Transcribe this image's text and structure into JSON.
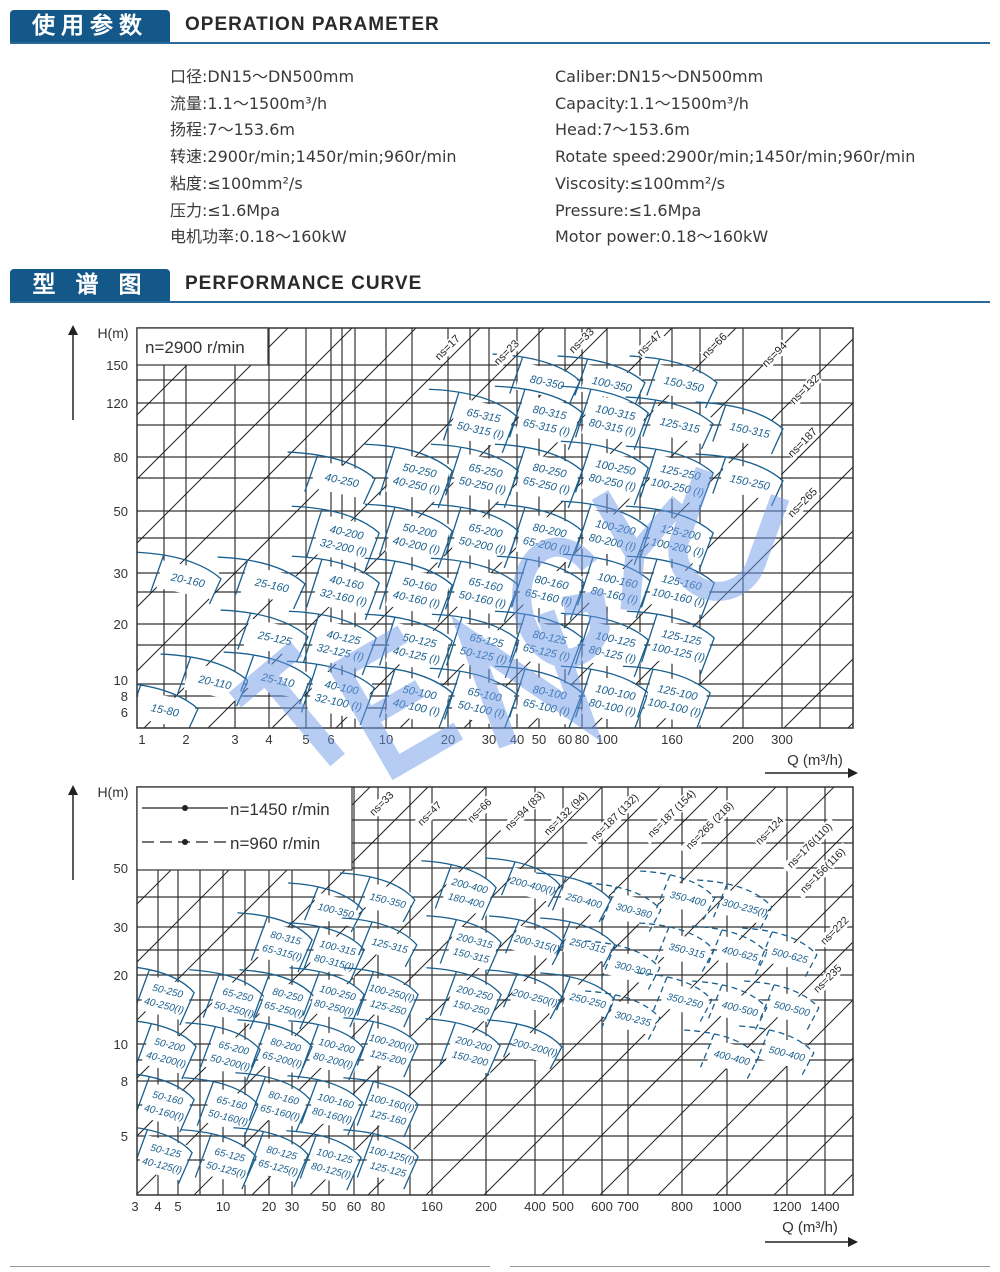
{
  "section1": {
    "title_cn": "使用参数",
    "title_en": "OPERATION PARAMETER"
  },
  "params_cn": [
    "口径:DN15～DN500mm",
    "流量:1.1～1500m³/h",
    "扬程:7～153.6m",
    "转速:2900r/min;1450r/min;960r/min",
    "粘度:≤100mm²/s",
    "压力:≤1.6Mpa",
    "电机功率:0.18～160kW"
  ],
  "params_en": [
    "Caliber:DN15～DN500mm",
    "Capacity:1.1～1500m³/h",
    "Head:7～153.6m",
    "Rotate speed:2900r/min;1450r/min;960r/min",
    "Viscosity:≤100mm²/s",
    "Pressure:≤1.6Mpa",
    "Motor power:0.18～160kW"
  ],
  "section2": {
    "title_cn": "型 谱 图",
    "title_en": "PERFORMANCE CURVE"
  },
  "watermark": "TENGYU",
  "colors": {
    "brand_blue": "#14588a",
    "curve_blue": "#1a5f8e",
    "grid": "#333333",
    "watermark": "#6f9ae8"
  },
  "chart1": {
    "ylabel": "H(m)",
    "xlabel": "Q (m³/h)",
    "legend": "n=2900 r/min",
    "y_ticks": [
      "150",
      "120",
      "80",
      "50",
      "30",
      "20",
      "10",
      "8",
      "6"
    ],
    "x_ticks": [
      "1",
      "2",
      "3",
      "4",
      "5",
      "6",
      "10",
      "20",
      "30",
      "40",
      "50",
      "60",
      "80",
      "100",
      "160",
      "200",
      "300"
    ],
    "ns_labels": [
      "ns=17",
      "ns=23",
      "ns=33",
      "ns=47",
      "ns=66",
      "ns=94",
      "ns=132",
      "ns=187",
      "ns=265"
    ],
    "models": [
      [
        "15-80"
      ],
      [
        "20-110"
      ],
      [
        "25-110"
      ],
      [
        "20-160"
      ],
      [
        "25-160"
      ],
      [
        "25-125"
      ],
      [
        "40-100",
        "32-100 (I)"
      ],
      [
        "40-125",
        "32-125 (I)"
      ],
      [
        "40-160",
        "32-160 (I)"
      ],
      [
        "40-200",
        "32-200 (I)"
      ],
      [
        "40-250"
      ],
      [
        "50-100",
        "40-100 (I)"
      ],
      [
        "50-125",
        "40-125 (I)"
      ],
      [
        "50-160",
        "40-160 (I)"
      ],
      [
        "50-200",
        "40-200 (I)"
      ],
      [
        "50-250",
        "40-250 (I)"
      ],
      [
        "65-315",
        "50-315 (I)"
      ],
      [
        "65-250",
        "50-250 (I)"
      ],
      [
        "65-200",
        "50-200 (I)"
      ],
      [
        "65-160",
        "50-160 (I)"
      ],
      [
        "65-125",
        "50-125 (I)"
      ],
      [
        "65-100",
        "50-100 (I)"
      ],
      [
        "80-350"
      ],
      [
        "80-315",
        "65-315 (I)"
      ],
      [
        "80-250",
        "65-250 (I)"
      ],
      [
        "80-200",
        "65-200 (I)"
      ],
      [
        "80-160",
        "65-160 (I)"
      ],
      [
        "80-125",
        "65-125 (I)"
      ],
      [
        "80-100",
        "65-100 (I)"
      ],
      [
        "100-350"
      ],
      [
        "100-315",
        "80-315 (I)"
      ],
      [
        "100-250",
        "80-250 (I)"
      ],
      [
        "100-200",
        "80-200 (I)"
      ],
      [
        "100-160",
        "80-160 (I)"
      ],
      [
        "100-125",
        "80-125 (I)"
      ],
      [
        "100-100",
        "80-100 (I)"
      ],
      [
        "150-350"
      ],
      [
        "125-315"
      ],
      [
        "125-250",
        "100-250 (I)"
      ],
      [
        "125-200",
        "100-200 (I)"
      ],
      [
        "125-160",
        "100-160 (I)"
      ],
      [
        "125-125",
        "100-125 (I)"
      ],
      [
        "125-100",
        "100-100 (I)"
      ],
      [
        "150-315"
      ],
      [
        "150-250"
      ]
    ]
  },
  "chart2": {
    "ylabel": "H(m)",
    "xlabel": "Q (m³/h)",
    "legend": [
      {
        "label": "n=1450 r/min",
        "style": "solid"
      },
      {
        "label": "n=960 r/min",
        "style": "dashed"
      }
    ],
    "y_ticks": [
      "50",
      "30",
      "20",
      "10",
      "8",
      "5"
    ],
    "x_ticks": [
      "3",
      "4",
      "5",
      "10",
      "20",
      "30",
      "50",
      "60",
      "80",
      "160",
      "200",
      "400",
      "500",
      "600",
      "700",
      "800",
      "1000",
      "1200",
      "1400"
    ],
    "ns_labels": [
      "ns=33",
      "ns=47",
      "ns=66",
      "ns=94 (83)",
      "ns=132 (94)",
      "ns=187 (132)",
      "ns=187 (154)",
      "ns=265 (218)",
      "ns=124",
      "ns=176(110)",
      "ns=156(116)",
      "ns=222",
      "ns=235"
    ],
    "models": [
      [
        "50-250",
        "40-250(I)"
      ],
      [
        "50-200",
        "40-200(I)"
      ],
      [
        "50-160",
        "40-160(I)"
      ],
      [
        "50-125",
        "40-125(I)"
      ],
      [
        "65-250",
        "50-250(I)"
      ],
      [
        "65-200",
        "50-200(I)"
      ],
      [
        "65-160",
        "50-160(I)"
      ],
      [
        "65-125",
        "50-125(I)"
      ],
      [
        "80-315",
        "65-315(I)"
      ],
      [
        "80-250",
        "65-250(I)"
      ],
      [
        "80-200",
        "65-200(I)"
      ],
      [
        "80-160",
        "65-160(I)"
      ],
      [
        "80-125",
        "65-125(I)"
      ],
      [
        "100-350"
      ],
      [
        "100-315",
        "80-315(I)"
      ],
      [
        "100-250",
        "80-250(I)"
      ],
      [
        "100-200",
        "80-200(I)"
      ],
      [
        "100-160",
        "80-160(I)"
      ],
      [
        "100-125",
        "80-125(I)"
      ],
      [
        "150-350"
      ],
      [
        "125-315"
      ],
      [
        "100-250(I)",
        "125-250"
      ],
      [
        "100-200(I)",
        "125-200"
      ],
      [
        "100-160(I)",
        "125-160"
      ],
      [
        "100-125(I)",
        "125-125"
      ],
      [
        "200-400",
        "180-400"
      ],
      [
        "200-315",
        "150-315"
      ],
      [
        "200-250",
        "150-250"
      ],
      [
        "200-200",
        "150-200"
      ],
      [
        "200-400(I)"
      ],
      [
        "200-315(I)"
      ],
      [
        "200-250(I)"
      ],
      [
        "200-200(I)"
      ],
      [
        "250-400"
      ],
      [
        "250-315"
      ],
      [
        "250-250"
      ],
      [
        "300-380"
      ],
      [
        "300-300"
      ],
      [
        "300-235"
      ],
      [
        "350-400"
      ],
      [
        "350-315"
      ],
      [
        "350-250"
      ],
      [
        "300-235(I)"
      ],
      [
        "400-625"
      ],
      [
        "400-500"
      ],
      [
        "400-400"
      ],
      [
        "500-625"
      ],
      [
        "500-500"
      ],
      [
        "500-400"
      ]
    ]
  }
}
